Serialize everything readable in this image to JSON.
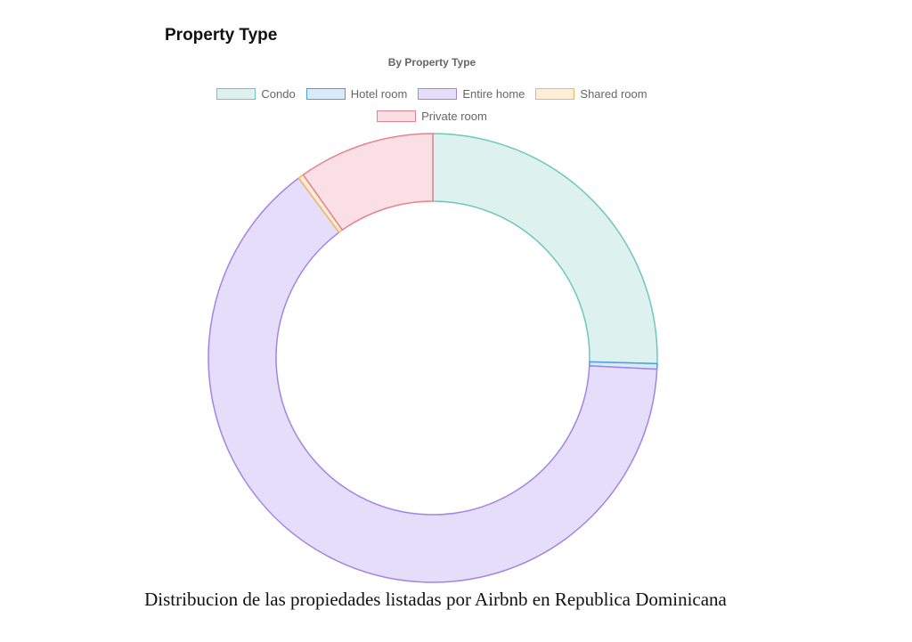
{
  "card": {
    "title": "Property Type"
  },
  "caption": "Distribucion de las propiedades listadas por Airbnb en Republica Dominicana",
  "chart_data": {
    "type": "pie",
    "variant": "doughnut",
    "title": "By Property Type",
    "legend_position": "top",
    "start": "top, clockwise",
    "categories": [
      "Condo",
      "Hotel room",
      "Entire home",
      "Shared room",
      "Private room"
    ],
    "values_percent": [
      25.4,
      0.4,
      64.0,
      0.4,
      9.8
    ],
    "colors": {
      "fill": [
        "#ddf1ef",
        "#d9ebfa",
        "#e6ddfb",
        "#ffeed7",
        "#fae0e4"
      ],
      "border": [
        "#6cc8bd",
        "#4a9ee6",
        "#9f86e3",
        "#f2b468",
        "#e68190"
      ]
    }
  }
}
